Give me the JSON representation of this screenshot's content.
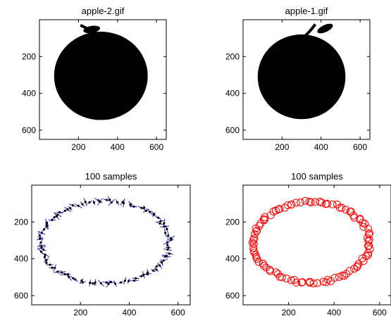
{
  "chart_data": [
    {
      "type": "image",
      "title": "apple-2.gif",
      "xlim": [
        0,
        650
      ],
      "ylim": [
        0,
        650
      ],
      "y_reversed": true,
      "xticks": [
        200,
        400,
        600
      ],
      "yticks": [
        200,
        400,
        600
      ],
      "shape": {
        "fill": "#000000",
        "body_cx": 315,
        "body_cy": 305,
        "body_rx": 240,
        "body_ry": 240,
        "stem_top": [
          210,
          30
        ]
      }
    },
    {
      "type": "image",
      "title": "apple-1.gif",
      "xlim": [
        0,
        650
      ],
      "ylim": [
        0,
        650
      ],
      "y_reversed": true,
      "xticks": [
        200,
        400,
        600
      ],
      "yticks": [
        200,
        400,
        600
      ],
      "shape": {
        "fill": "#000000",
        "body_cx": 300,
        "body_cy": 310,
        "body_rx": 225,
        "body_ry": 230,
        "stem_top": [
          370,
          25
        ]
      }
    },
    {
      "type": "scatter",
      "title": "100 samples",
      "xlim": [
        0,
        650
      ],
      "ylim": [
        0,
        650
      ],
      "y_reversed": true,
      "xticks": [
        200,
        400,
        600
      ],
      "yticks": [
        200,
        400,
        600
      ],
      "series": [
        {
          "marker": "dot",
          "color": "#000000",
          "stroke": "#1f1fc8",
          "count": 100,
          "center": [
            300,
            310
          ],
          "rx": 265,
          "ry": 225
        }
      ]
    },
    {
      "type": "scatter",
      "title": "100 samples",
      "xlim": [
        0,
        650
      ],
      "ylim": [
        0,
        650
      ],
      "y_reversed": true,
      "xticks": [
        200,
        400,
        600
      ],
      "yticks": [
        200,
        400,
        600
      ],
      "series": [
        {
          "marker": "circle",
          "color": "#ff0000",
          "count": 100,
          "center": [
            300,
            310
          ],
          "rx": 255,
          "ry": 220
        }
      ]
    }
  ]
}
